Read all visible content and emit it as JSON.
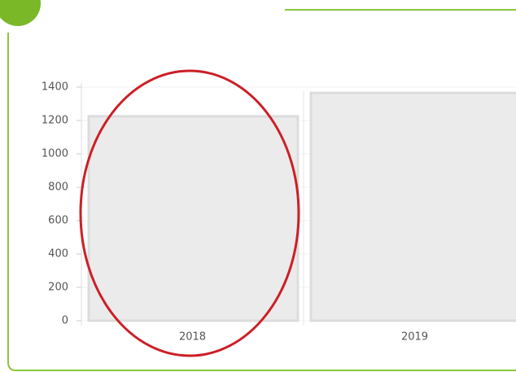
{
  "chart_data": {
    "type": "bar",
    "categories": [
      "2018",
      "2019"
    ],
    "values": [
      1225,
      1365
    ],
    "color": "#ebebeb",
    "ylim": [
      0,
      1400
    ],
    "yticks": [
      0,
      200,
      400,
      600,
      800,
      1000,
      1200,
      1400
    ],
    "grid": true
  }
}
